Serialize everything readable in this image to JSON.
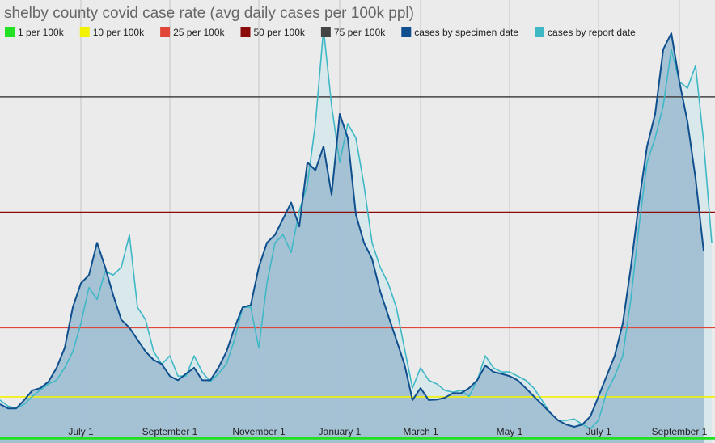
{
  "chart_data": {
    "type": "area",
    "title": "shelby county covid case rate (avg daily cases per 100k ppl)",
    "categories": [
      null,
      null,
      null,
      null,
      null,
      null,
      null,
      null,
      null,
      null,
      "July 1",
      null,
      null,
      null,
      null,
      null,
      null,
      null,
      null,
      null,
      null,
      "September 1",
      null,
      null,
      null,
      null,
      null,
      null,
      null,
      null,
      null,
      null,
      "November 1",
      null,
      null,
      null,
      null,
      null,
      null,
      null,
      null,
      null,
      "January 1",
      null,
      null,
      null,
      null,
      null,
      null,
      null,
      null,
      null,
      "March 1",
      null,
      null,
      null,
      null,
      null,
      null,
      null,
      null,
      null,
      null,
      "May 1",
      null,
      null,
      null,
      null,
      null,
      null,
      null,
      null,
      null,
      null,
      "July 1",
      null,
      null,
      null,
      null,
      null,
      null,
      null,
      null,
      null,
      "September 1",
      null,
      null,
      null,
      null
    ],
    "reference_lines": [
      {
        "name": "1 per 100k",
        "color": "#22e022",
        "value": 1
      },
      {
        "name": "10 per 100k",
        "color": "#f2f200",
        "value": 10
      },
      {
        "name": "25 per 100k",
        "color": "#e0453a",
        "value": 25
      },
      {
        "name": "50 per 100k",
        "color": "#8b0a0a",
        "value": 50
      },
      {
        "name": "75 per 100k",
        "color": "#444444",
        "value": 75
      }
    ],
    "series": [
      {
        "name": "cases by specimen date",
        "color": "#0f4f8e",
        "fill": "#9fbed3",
        "values": [
          8.4,
          7.5,
          7.5,
          9.3,
          11.4,
          11.9,
          13.3,
          16.3,
          20.6,
          29.4,
          34.6,
          36.4,
          43.4,
          38.1,
          32,
          26.7,
          25,
          22.4,
          19.8,
          18,
          17.1,
          14.5,
          13.6,
          15,
          16.3,
          13.6,
          13.6,
          16.3,
          19.8,
          25,
          29.4,
          29.9,
          38.1,
          43.4,
          45.1,
          48.6,
          52.1,
          46.9,
          60.8,
          59.1,
          64.3,
          53.8,
          71.3,
          66.1,
          49.5,
          43.4,
          39.9,
          32.9,
          27.6,
          22.4,
          17.1,
          9.3,
          11.9,
          9.3,
          9.4,
          9.8,
          10.8,
          10.8,
          11.9,
          13.6,
          16.8,
          15.4,
          15,
          14.5,
          13.6,
          11.9,
          10.1,
          8.4,
          6.6,
          4.9,
          4,
          3.5,
          4,
          5.8,
          10.1,
          14.5,
          18.9,
          25.9,
          38.1,
          52.1,
          64.3,
          71.3,
          85.3,
          88.8,
          78.3,
          69.6,
          57.3,
          41.6,
          null
        ]
      },
      {
        "name": "cases by report date",
        "color": "#3fb8c6",
        "fill": "#d6e8ea",
        "values": [
          9.3,
          8,
          7.5,
          8.4,
          10.1,
          11.5,
          12.8,
          13.6,
          16.3,
          19.8,
          25.9,
          33.7,
          31.1,
          37.2,
          36.4,
          38.1,
          45.1,
          29.4,
          26.7,
          19.8,
          17.1,
          18.9,
          14.5,
          14.5,
          18.9,
          15.4,
          13.3,
          15,
          17.1,
          22.4,
          29.4,
          29.4,
          20.6,
          34.6,
          43.4,
          45.1,
          41.3,
          50.3,
          55.9,
          69.2,
          89.7,
          73.1,
          60.8,
          69.2,
          66.1,
          55.9,
          43.4,
          38.1,
          34.6,
          29.4,
          20.6,
          11.9,
          16.3,
          13.6,
          12.8,
          11.4,
          11,
          11.4,
          10.1,
          13.6,
          18.9,
          16.3,
          15.4,
          15.4,
          14.5,
          13.6,
          11.9,
          9.3,
          6.6,
          4.9,
          4.9,
          5.2,
          4,
          3.1,
          4.9,
          11,
          14.5,
          18.9,
          31.1,
          46.9,
          60.8,
          66.1,
          73.1,
          85.3,
          78.3,
          76.9,
          81.8,
          65.2,
          43.4
        ]
      }
    ],
    "ylim": [
      0,
      96
    ]
  }
}
